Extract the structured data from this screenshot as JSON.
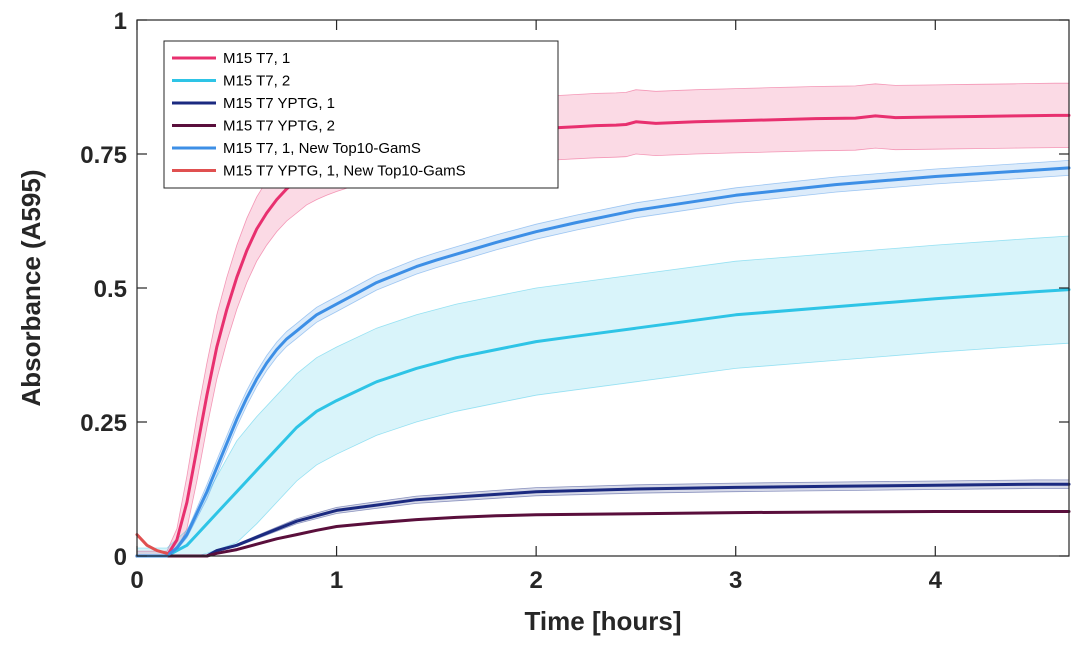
{
  "chart_data": {
    "type": "line",
    "title": "",
    "xlabel": "Time [hours]",
    "ylabel": "Absorbance (A595)",
    "xlim": [
      0,
      4.67
    ],
    "ylim": [
      0,
      1
    ],
    "xticks": [
      0,
      1,
      2,
      3,
      4
    ],
    "xtick_labels": [
      "0",
      "1",
      "2",
      "3",
      "4"
    ],
    "yticks": [
      0,
      0.25,
      0.5,
      0.75,
      1
    ],
    "ytick_labels": [
      "0",
      "0.25",
      "0.5",
      "0.75",
      "1"
    ],
    "grid": false,
    "legend_position": "top-left",
    "series": [
      {
        "name": "M15 T7, 1",
        "color": "#e8306f",
        "shaded": true,
        "x": [
          0,
          0.05,
          0.1,
          0.15,
          0.2,
          0.25,
          0.3,
          0.35,
          0.4,
          0.45,
          0.5,
          0.55,
          0.6,
          0.65,
          0.7,
          0.75,
          0.8,
          0.85,
          0.9,
          0.95,
          1.0,
          1.1,
          1.2,
          1.3,
          1.4,
          1.5,
          1.6,
          1.7,
          1.8,
          1.9,
          2.0,
          2.1,
          2.2,
          2.3,
          2.4,
          2.45,
          2.5,
          2.6,
          2.8,
          3.0,
          3.2,
          3.4,
          3.6,
          3.7,
          3.8,
          4.0,
          4.2,
          4.4,
          4.6,
          4.67
        ],
        "y": [
          0.0,
          0.0,
          0.0,
          0.0,
          0.03,
          0.1,
          0.2,
          0.3,
          0.39,
          0.46,
          0.52,
          0.57,
          0.61,
          0.64,
          0.665,
          0.685,
          0.7,
          0.715,
          0.725,
          0.733,
          0.74,
          0.752,
          0.762,
          0.77,
          0.776,
          0.781,
          0.785,
          0.789,
          0.792,
          0.795,
          0.797,
          0.799,
          0.801,
          0.803,
          0.804,
          0.805,
          0.81,
          0.807,
          0.81,
          0.812,
          0.814,
          0.816,
          0.817,
          0.821,
          0.818,
          0.819,
          0.82,
          0.821,
          0.822,
          0.822
        ],
        "spread": 0.06
      },
      {
        "name": "M15 T7, 2",
        "color": "#2ec4e6",
        "shaded": true,
        "x": [
          0,
          0.05,
          0.1,
          0.15,
          0.2,
          0.25,
          0.3,
          0.35,
          0.4,
          0.45,
          0.5,
          0.6,
          0.7,
          0.8,
          0.9,
          1.0,
          1.2,
          1.4,
          1.6,
          1.8,
          2.0,
          2.2,
          2.5,
          3.0,
          3.5,
          4.0,
          4.5,
          4.67
        ],
        "y": [
          0.0,
          0.0,
          0.0,
          0.0,
          0.01,
          0.02,
          0.04,
          0.06,
          0.08,
          0.1,
          0.12,
          0.16,
          0.2,
          0.24,
          0.27,
          0.29,
          0.325,
          0.35,
          0.37,
          0.385,
          0.4,
          0.41,
          0.425,
          0.45,
          0.465,
          0.48,
          0.493,
          0.497
        ],
        "spread": 0.1
      },
      {
        "name": "M15 T7 YPTG, 1",
        "color": "#1b2a80",
        "shaded": true,
        "x": [
          0,
          0.1,
          0.2,
          0.3,
          0.35,
          0.4,
          0.5,
          0.6,
          0.7,
          0.8,
          0.9,
          1.0,
          1.2,
          1.4,
          1.6,
          1.8,
          2.0,
          2.5,
          3.0,
          3.5,
          4.0,
          4.5,
          4.67
        ],
        "y": [
          0.0,
          0.0,
          0.0,
          0.0,
          0.0,
          0.01,
          0.02,
          0.035,
          0.05,
          0.065,
          0.075,
          0.085,
          0.095,
          0.105,
          0.11,
          0.115,
          0.12,
          0.125,
          0.128,
          0.13,
          0.132,
          0.134,
          0.134
        ],
        "spread": 0.008
      },
      {
        "name": "M15 T7 YPTG, 2",
        "color": "#5a0f3c",
        "shaded": false,
        "x": [
          0,
          0.1,
          0.2,
          0.3,
          0.35,
          0.4,
          0.5,
          0.6,
          0.7,
          0.8,
          0.9,
          1.0,
          1.2,
          1.4,
          1.6,
          1.8,
          2.0,
          2.5,
          3.0,
          3.5,
          4.0,
          4.5,
          4.67
        ],
        "y": [
          0.0,
          0.0,
          0.0,
          0.0,
          0.0,
          0.005,
          0.012,
          0.022,
          0.032,
          0.04,
          0.048,
          0.055,
          0.062,
          0.068,
          0.072,
          0.075,
          0.077,
          0.079,
          0.081,
          0.082,
          0.083,
          0.083,
          0.083
        ],
        "spread": 0
      },
      {
        "name": "M15 T7, 1, New Top10-GamS",
        "color": "#3d8fe6",
        "shaded": true,
        "x": [
          0,
          0.05,
          0.1,
          0.15,
          0.2,
          0.25,
          0.3,
          0.35,
          0.4,
          0.45,
          0.5,
          0.55,
          0.6,
          0.65,
          0.7,
          0.75,
          0.8,
          0.85,
          0.9,
          0.95,
          1.0,
          1.1,
          1.2,
          1.3,
          1.4,
          1.5,
          1.6,
          1.8,
          2.0,
          2.2,
          2.5,
          3.0,
          3.5,
          4.0,
          4.5,
          4.67
        ],
        "y": [
          0.0,
          0.0,
          0.0,
          0.0,
          0.015,
          0.04,
          0.08,
          0.12,
          0.165,
          0.21,
          0.255,
          0.295,
          0.33,
          0.36,
          0.385,
          0.405,
          0.42,
          0.435,
          0.45,
          0.46,
          0.47,
          0.49,
          0.51,
          0.525,
          0.54,
          0.552,
          0.563,
          0.585,
          0.605,
          0.622,
          0.645,
          0.673,
          0.693,
          0.708,
          0.72,
          0.724
        ],
        "spread": 0.014
      },
      {
        "name": "M15 T7 YPTG, 1, New Top10-GamS",
        "color": "#e05050",
        "shaded": false,
        "x": [
          0,
          0.05,
          0.1,
          0.15
        ],
        "y": [
          0.04,
          0.02,
          0.01,
          0.005
        ],
        "spread": 0
      }
    ]
  }
}
